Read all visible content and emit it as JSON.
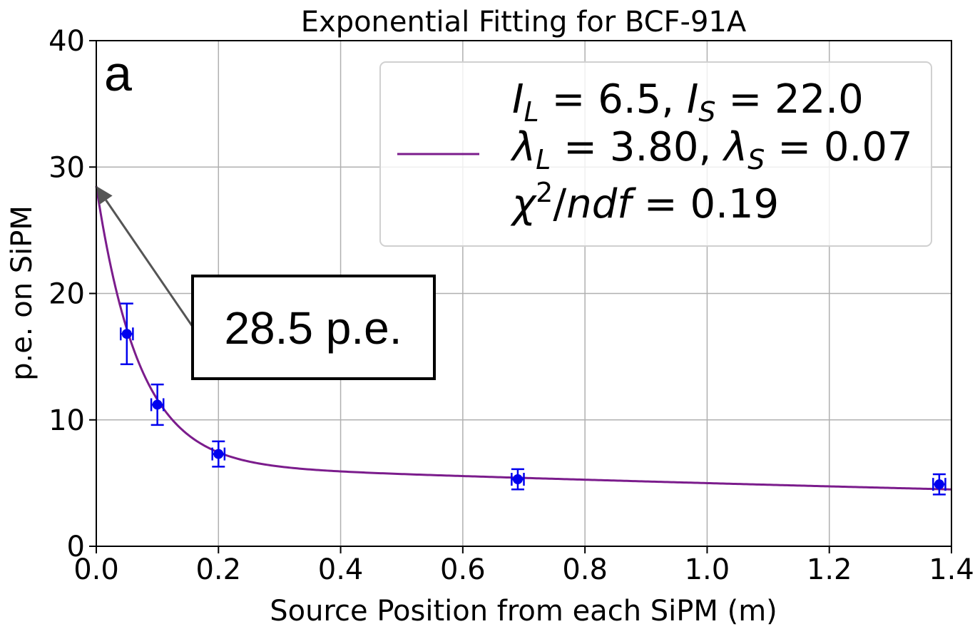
{
  "chart_data": {
    "type": "scatter",
    "title": "Exponential Fitting for BCF-91A",
    "xlabel": "Source Position from each SiPM (m)",
    "ylabel": "p.e. on SiPM",
    "xlim": [
      0,
      1.4
    ],
    "ylim": [
      0,
      40
    ],
    "x_ticks": [
      0.0,
      0.2,
      0.4,
      0.6,
      0.8,
      1.0,
      1.2,
      1.4
    ],
    "x_tick_labels": [
      "0.0",
      "0.2",
      "0.4",
      "0.6",
      "0.8",
      "1.0",
      "1.2",
      "1.4"
    ],
    "y_ticks": [
      0,
      10,
      20,
      30,
      40
    ],
    "y_tick_labels": [
      "0",
      "10",
      "20",
      "30",
      "40"
    ],
    "grid": true,
    "panel_label": "a",
    "colors": {
      "points": "#0000ee",
      "fit": "#7b1c8c",
      "grid": "#b0b0b0",
      "arrow": "#555555"
    },
    "series": [
      {
        "type": "scatter",
        "x": [
          0.05,
          0.1,
          0.2,
          0.69,
          1.38
        ],
        "y": [
          16.8,
          11.2,
          7.3,
          5.3,
          4.9
        ],
        "y_err": [
          2.4,
          1.6,
          1.0,
          0.8,
          0.8
        ],
        "x_err": [
          0.01,
          0.01,
          0.01,
          0.01,
          0.01
        ]
      },
      {
        "type": "line",
        "model": "I_L*exp(-x/lambda_L) + I_S*exp(-x/lambda_S)",
        "params": {
          "I_L": 6.5,
          "I_S": 22.0,
          "lambda_L": 3.8,
          "lambda_S": 0.07
        }
      }
    ],
    "legend": {
      "placement": "top-right",
      "lines": [
        "I_L = 6.5, I_S = 22.0",
        "λ_L = 3.80, λ_S = 0.07",
        "χ²/ndf = 0.19"
      ]
    },
    "annotations": [
      {
        "text": "28.5 p.e.",
        "points_to": {
          "x": 0.0,
          "y": 28.5
        }
      }
    ]
  }
}
